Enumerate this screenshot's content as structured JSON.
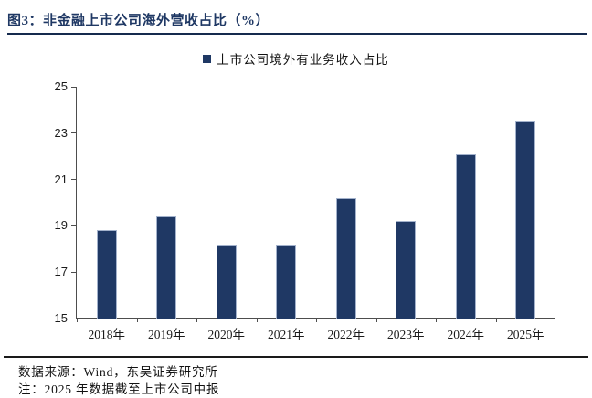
{
  "header": {
    "title": "图3：非金融上市公司海外营收占比（%）"
  },
  "colors": {
    "bar": "#1f3864",
    "bar_border": "#a3b2cc",
    "title": "#1f3864",
    "axis": "#4d4d4d"
  },
  "chart_data": {
    "type": "bar",
    "title": "图3：非金融上市公司海外营收占比（%）",
    "legend": [
      "上市公司境外有业务收入占比"
    ],
    "legend_position": "top",
    "categories": [
      "2018年",
      "2019年",
      "2020年",
      "2021年",
      "2022年",
      "2023年",
      "2024年",
      "2025年"
    ],
    "values": [
      18.8,
      19.4,
      18.2,
      18.2,
      20.2,
      19.2,
      22.1,
      23.5
    ],
    "xlabel": "",
    "ylabel": "",
    "ylim": [
      15,
      25
    ],
    "yticks": [
      15,
      17,
      19,
      21,
      23,
      25
    ],
    "grid": false
  },
  "footer": {
    "source": "数据来源：Wind，东吴证券研究所",
    "note": "注：2025 年数据截至上市公司中报"
  }
}
